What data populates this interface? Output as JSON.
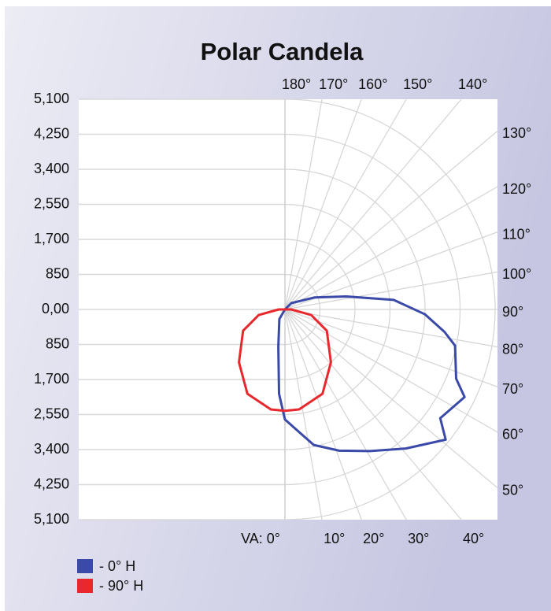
{
  "chart_data": {
    "type": "polar",
    "title": "Polar Candela",
    "ylim": [
      -5100,
      5100
    ],
    "yticks": [
      {
        "value": 5100,
        "label": "5,100"
      },
      {
        "value": 4250,
        "label": "4,250"
      },
      {
        "value": 3400,
        "label": "3,400"
      },
      {
        "value": 2550,
        "label": "2,550"
      },
      {
        "value": 1700,
        "label": "1,700"
      },
      {
        "value": 850,
        "label": "850"
      },
      {
        "value": 0,
        "label": "0,00"
      },
      {
        "value": -850,
        "label": "850"
      },
      {
        "value": -1700,
        "label": "1,700"
      },
      {
        "value": -2550,
        "label": "2,550"
      },
      {
        "value": -3400,
        "label": "3,400"
      },
      {
        "value": -4250,
        "label": "4,250"
      },
      {
        "value": -5100,
        "label": "5,100"
      }
    ],
    "top_ticks": [
      {
        "value": 180,
        "label": "180°"
      },
      {
        "value": 170,
        "label": "170°"
      },
      {
        "value": 160,
        "label": "160°"
      },
      {
        "value": 150,
        "label": "150°"
      },
      {
        "value": 140,
        "label": "140°"
      }
    ],
    "right_ticks": [
      {
        "value": 130,
        "label": "130°"
      },
      {
        "value": 120,
        "label": "120°"
      },
      {
        "value": 110,
        "label": "110°"
      },
      {
        "value": 100,
        "label": "100°"
      },
      {
        "value": 90,
        "label": "90°"
      },
      {
        "value": 80,
        "label": "80°"
      },
      {
        "value": 70,
        "label": "70°"
      },
      {
        "value": 60,
        "label": "60°"
      },
      {
        "value": 50,
        "label": "50°"
      }
    ],
    "bottom_ticks": [
      {
        "value": 0,
        "label": "VA: 0°"
      },
      {
        "value": 10,
        "label": "10°"
      },
      {
        "value": 20,
        "label": "20°"
      },
      {
        "value": 30,
        "label": "30°"
      },
      {
        "value": 40,
        "label": "40°"
      }
    ],
    "series": [
      {
        "name": "- 0° H",
        "color": "#3b4aa8",
        "mirror": false,
        "angles": [
          -30,
          -10,
          -4,
          0,
          12,
          21,
          31,
          41,
          51,
          55,
          64,
          68,
          78,
          82,
          88,
          95,
          102,
          112,
          135,
          180
        ],
        "values": [
          270,
          920,
          2050,
          2670,
          3360,
          3670,
          4010,
          4470,
          5020,
          4600,
          4850,
          4480,
          4220,
          3910,
          3400,
          2650,
          1520,
          780,
          215,
          0
        ]
      },
      {
        "name": "- 90° H",
        "color": "#e8282c",
        "mirror": true,
        "angles": [
          0,
          8,
          24,
          41,
          63,
          78,
          90,
          180
        ],
        "values": [
          2460,
          2450,
          2240,
          1700,
          1140,
          650,
          150,
          0
        ]
      }
    ]
  }
}
